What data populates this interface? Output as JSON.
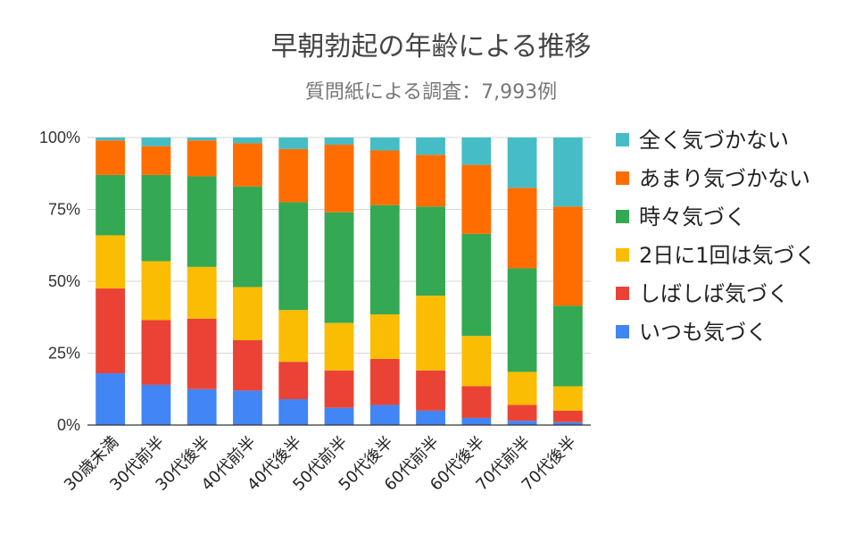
{
  "chart_data": {
    "type": "bar",
    "stacked": true,
    "normalized": true,
    "title": "早朝勃起の年齢による推移",
    "subtitle": "質問紙による調査：7,993例",
    "xlabel": "",
    "ylabel": "",
    "ylim": [
      0,
      100
    ],
    "ytick_labels": [
      "0%",
      "25%",
      "50%",
      "75%",
      "100%"
    ],
    "grid": true,
    "legend_position": "right",
    "categories": [
      "30歳未満",
      "30代前半",
      "30代後半",
      "40代前半",
      "40代後半",
      "50代前半",
      "50代後半",
      "60代前半",
      "60代後半",
      "70代前半",
      "70代後半"
    ],
    "series": [
      {
        "name": "いつも気づく",
        "color": "#4285f4",
        "values": [
          18,
          14,
          12.5,
          12,
          9,
          6,
          7,
          5,
          2.5,
          1.5,
          1
        ]
      },
      {
        "name": "しばしば気づく",
        "color": "#ea4335",
        "values": [
          29.5,
          22.5,
          24.5,
          17.5,
          13,
          13,
          16,
          14,
          11,
          5.5,
          4
        ]
      },
      {
        "name": "2日に1回は気づく",
        "color": "#fbbc04",
        "values": [
          18.5,
          20.5,
          18,
          18.5,
          18,
          16.5,
          15.5,
          26,
          17.5,
          11.5,
          8.5
        ]
      },
      {
        "name": "時々気づく",
        "color": "#34a853",
        "values": [
          21,
          30,
          31.5,
          35,
          37.5,
          38.5,
          38,
          31,
          35.5,
          36,
          28
        ]
      },
      {
        "name": "あまり気づかない",
        "color": "#ff6d01",
        "values": [
          12,
          10,
          12.5,
          15,
          18.5,
          23.5,
          19,
          18,
          24,
          28,
          34.5
        ]
      },
      {
        "name": "全く気づかない",
        "color": "#46bdc6",
        "values": [
          1,
          3,
          1,
          2,
          4,
          2.5,
          4.5,
          6,
          9.5,
          17.5,
          24
        ]
      }
    ]
  }
}
